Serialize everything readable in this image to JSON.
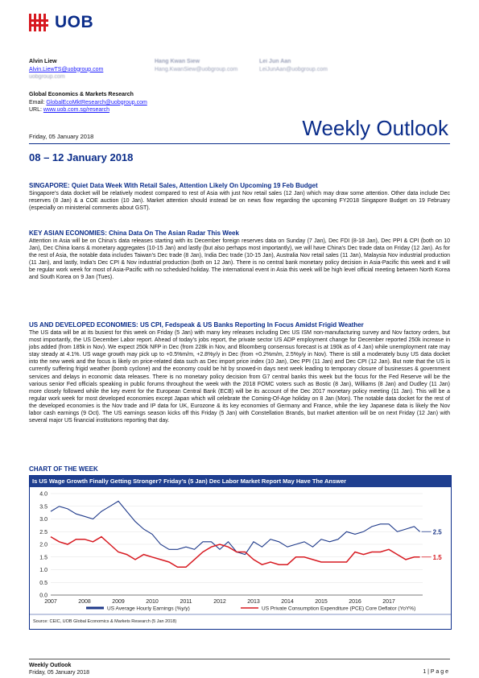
{
  "header": {
    "logo_text": "UOB",
    "contacts": [
      {
        "name": "Alvin Liew",
        "email": "Alvin.LiewTS@uobgroup.com",
        "extra": "uobgroup.com"
      },
      {
        "name": "Hang Kwan Siew",
        "email": "Hang.KwanSiew@uobgroup.com"
      },
      {
        "name": "Lei Jun Aan",
        "email": "LeiJunAan@uobgroup.com"
      }
    ],
    "dept": "Global Economics & Markets Research",
    "email_label": "Email: ",
    "email": "GlobalEcoMktResearch@uobgroup.com",
    "url_label": "URL: ",
    "url": "www.uob.com.sg/research",
    "date": "Friday, 05 January 2018",
    "title": "Weekly Outlook",
    "week": "08 – 12 January 2018"
  },
  "sections": [
    {
      "title": "SINGAPORE: Quiet Data Week With Retail Sales, Attention Likely On Upcoming 19 Feb Budget",
      "body": "Singapore’s data docket will be relatively modest compared to rest of Asia with just Nov retail sales (12 Jan) which may draw some attention. Other data include Dec reserves (8 Jan) & a COE auction (10 Jan). Market attention should instead be on news flow regarding the upcoming FY2018 Singapore Budget on 19 February (especially on ministerial comments about GST)."
    },
    {
      "title": "KEY ASIAN ECONOMIES: China Data On The Asian Radar This Week",
      "body": "Attention in Asia will be on China’s data releases starting with its December foreign reserves data on Sunday (7 Jan), Dec FDI (8-18 Jan), Dec PPI & CPI (both on 10 Jan), Dec China loans & monetary aggregates (10-15 Jan) and lastly (but also perhaps most importantly), we will have China’s Dec trade data on Friday (12 Jan). As for the rest of Asia, the notable data includes Taiwan’s Dec trade (8 Jan), India Dec trade (10-15 Jan), Australia Nov retail sales (11 Jan), Malaysia Nov industrial production (11 Jan), and lastly, India’s Dec CPI & Nov industrial production (both on 12 Jan). There is no central bank monetary policy decision in Asia-Pacific this week and it will be regular work week for most of Asia-Pacific with no scheduled holiday. The international event in Asia this week will be high level official meeting between North Korea and South Korea on 9 Jan (Tues)."
    },
    {
      "title": "US AND DEVELOPED ECONOMIES: US CPI, Fedspeak & US Banks Reporting In Focus Amidst Frigid Weather",
      "body": "The US data will be at its busiest for this week on Friday (5 Jan) with many key releases including Dec US ISM non-manufacturing survey and Nov factory orders, but most importantly, the US December Labor report. Ahead of today’s jobs report, the private sector US ADP employment change for December reported 250k increase in jobs added (from 185k in Nov). We expect 250k NFP in Dec (from 228k in Nov, and Bloomberg consensus forecast is at 190k as of 4 Jan) while unemployment rate may stay steady at 4.1%. US wage growth may pick up to +0.5%m/m, +2.8%y/y in Dec (from +0.2%m/m, 2.5%y/y in Nov). There is still a moderately busy US data docket into the new week and the focus is likely on price-related data such as Dec import price index (10 Jan), Dec PPI (11 Jan) and Dec CPI (12 Jan). But note that the US is currently suffering frigid weather (bomb cyclone) and the economy could be hit by snowed-in days next week leading to temporary closure of businesses & government services and delays in economic data releases. There is no monetary policy decision from G7 central banks this week but the focus for the Fed Reserve will be the various senior Fed officials speaking in public forums throughout the week with the 2018 FOMC voters such as Bostic (8 Jan), Williams (8 Jan) and Dudley (11 Jan) more closely followed while the key event for the European Central Bank (ECB) will be its account of the Dec 2017 monetary policy meeting (11 Jan). This will be a regular work week for most developed economies except Japan which will celebrate the Coming-Of-Age holiday on 8 Jan (Mon). The notable data docket for the rest of the developed economies is the Nov trade and IP data for UK, Eurozone & its key economies of Germany and France, while the key Japanese data is likely the Nov labor cash earnings (9 Oct). The US earnings season kicks off this Friday (5 Jan) with Constellation Brands, but market attention will be on next Friday (12 Jan) with several major US financial institutions reporting that day."
    }
  ],
  "chart_heading": "CHART OF THE WEEK",
  "chart_data": {
    "type": "line",
    "title": "Is US Wage Growth Finally Getting Stronger? Friday’s (5 Jan) Dec Labor Market Report May Have The Answer",
    "x_ticks": [
      "2007",
      "2008",
      "2009",
      "2010",
      "2011",
      "2012",
      "2013",
      "2014",
      "2015",
      "2016",
      "2017"
    ],
    "y_ticks": [
      "0.0",
      "0.5",
      "1.0",
      "1.5",
      "2.0",
      "2.5",
      "3.0",
      "3.5",
      "4.0"
    ],
    "ylim": [
      0,
      4.0
    ],
    "xlim": [
      2007.0,
      2018.0
    ],
    "series": [
      {
        "name": "US Average Hourly Earnings (%y/y)",
        "color": "#1f3a8a",
        "x": [
          2007.0,
          2007.25,
          2007.5,
          2007.75,
          2008.0,
          2008.25,
          2008.5,
          2008.75,
          2009.0,
          2009.25,
          2009.5,
          2009.75,
          2010.0,
          2010.25,
          2010.5,
          2010.75,
          2011.0,
          2011.25,
          2011.5,
          2011.75,
          2012.0,
          2012.25,
          2012.5,
          2012.75,
          2013.0,
          2013.25,
          2013.5,
          2013.75,
          2014.0,
          2014.25,
          2014.5,
          2014.75,
          2015.0,
          2015.25,
          2015.5,
          2015.75,
          2016.0,
          2016.25,
          2016.5,
          2016.75,
          2017.0,
          2017.25,
          2017.5,
          2017.75,
          2017.92
        ],
        "y": [
          3.3,
          3.5,
          3.4,
          3.2,
          3.1,
          3.0,
          3.3,
          3.5,
          3.7,
          3.3,
          2.9,
          2.6,
          2.4,
          2.0,
          1.8,
          1.8,
          1.9,
          1.8,
          2.1,
          2.1,
          1.8,
          2.1,
          1.7,
          1.6,
          2.1,
          1.9,
          2.2,
          2.1,
          1.9,
          2.0,
          2.1,
          1.9,
          2.2,
          2.1,
          2.2,
          2.5,
          2.4,
          2.5,
          2.7,
          2.8,
          2.8,
          2.5,
          2.6,
          2.7,
          2.5
        ]
      },
      {
        "name": "US Private Consumption Expenditure (PCE) Core Deflator (YoY%)",
        "color": "#d71920",
        "x": [
          2007.0,
          2007.25,
          2007.5,
          2007.75,
          2008.0,
          2008.25,
          2008.5,
          2008.75,
          2009.0,
          2009.25,
          2009.5,
          2009.75,
          2010.0,
          2010.25,
          2010.5,
          2010.75,
          2011.0,
          2011.25,
          2011.5,
          2011.75,
          2012.0,
          2012.25,
          2012.5,
          2012.75,
          2013.0,
          2013.25,
          2013.5,
          2013.75,
          2014.0,
          2014.25,
          2014.5,
          2014.75,
          2015.0,
          2015.25,
          2015.5,
          2015.75,
          2016.0,
          2016.25,
          2016.5,
          2016.75,
          2017.0,
          2017.25,
          2017.5,
          2017.75,
          2017.92
        ],
        "y": [
          2.3,
          2.1,
          2.0,
          2.2,
          2.2,
          2.1,
          2.3,
          2.0,
          1.7,
          1.6,
          1.4,
          1.6,
          1.5,
          1.4,
          1.3,
          1.1,
          1.1,
          1.4,
          1.7,
          1.9,
          2.0,
          1.9,
          1.7,
          1.7,
          1.4,
          1.2,
          1.3,
          1.2,
          1.2,
          1.5,
          1.5,
          1.4,
          1.3,
          1.3,
          1.3,
          1.3,
          1.7,
          1.6,
          1.7,
          1.7,
          1.8,
          1.6,
          1.4,
          1.5,
          1.5
        ]
      }
    ],
    "end_labels": [
      "2.5",
      "1.5"
    ],
    "source": "Source: CEIC, UOB Global Economics & Markets Research (5 Jan 2018)"
  },
  "footer": {
    "title": "Weekly Outlook",
    "date": "Friday, 05 January 2018",
    "page": "1 | P a g e"
  }
}
